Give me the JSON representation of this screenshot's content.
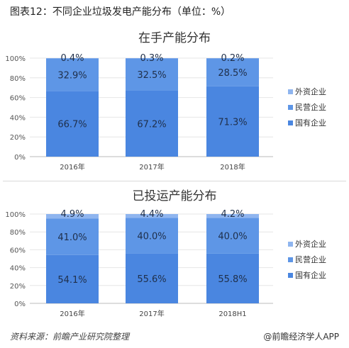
{
  "header": {
    "title": "图表12：不同企业垃圾发电产能分布（单位：%）"
  },
  "footer": {
    "source": "资料来源：前瞻产业研究院整理",
    "brand": "@前瞻经济学人APP"
  },
  "colors": {
    "state": "#4a86e0",
    "private": "#5e96e6",
    "foreign": "#8fb5ef",
    "axis": "#999999",
    "grid": "#e6e6e6"
  },
  "chart_data": [
    {
      "type": "bar",
      "stacked": true,
      "title": "在手产能分布",
      "categories": [
        "2016年",
        "2017年",
        "2018年"
      ],
      "series": [
        {
          "name": "国有企业",
          "values": [
            66.7,
            67.2,
            71.3
          ],
          "labels": [
            "66.7%",
            "67.2%",
            "71.3%"
          ]
        },
        {
          "name": "民营企业",
          "values": [
            32.9,
            32.5,
            28.5
          ],
          "labels": [
            "32.9%",
            "32.5%",
            "28.5%"
          ]
        },
        {
          "name": "外资企业",
          "values": [
            0.4,
            0.3,
            0.2
          ],
          "labels": [
            "0.4%",
            "0.3%",
            "0.2%"
          ]
        }
      ],
      "ylim": [
        0,
        100
      ],
      "yticks": [
        "0%",
        "20%",
        "40%",
        "60%",
        "80%",
        "100%"
      ],
      "legend": "right"
    },
    {
      "type": "bar",
      "stacked": true,
      "title": "已投运产能分布",
      "categories": [
        "2016年",
        "2017年",
        "2018H1"
      ],
      "series": [
        {
          "name": "国有企业",
          "values": [
            54.1,
            55.6,
            55.8
          ],
          "labels": [
            "54.1%",
            "55.6%",
            "55.8%"
          ]
        },
        {
          "name": "民营企业",
          "values": [
            41.0,
            40.0,
            40.0
          ],
          "labels": [
            "41.0%",
            "40.0%",
            "40.0%"
          ]
        },
        {
          "name": "外资企业",
          "values": [
            4.9,
            4.4,
            4.2
          ],
          "labels": [
            "4.9%",
            "4.4%",
            "4.2%"
          ]
        }
      ],
      "ylim": [
        0,
        100
      ],
      "yticks": [
        "0%",
        "20%",
        "40%",
        "60%",
        "80%",
        "100%"
      ],
      "legend": "right"
    }
  ]
}
